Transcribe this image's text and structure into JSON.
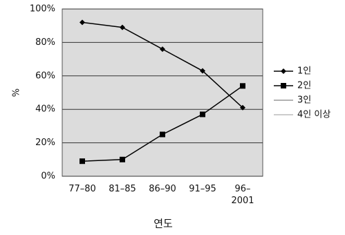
{
  "chart_data": {
    "type": "line",
    "categories": [
      "77–80",
      "81–85",
      "86–90",
      "91–95",
      "96–\n2001"
    ],
    "series": [
      {
        "name": "1인",
        "color": "#000000",
        "marker": "diamond",
        "values": [
          92,
          89,
          76,
          63,
          41
        ]
      },
      {
        "name": "2인",
        "color": "#000000",
        "marker": "square",
        "values": [
          9,
          10,
          25,
          37,
          54
        ]
      },
      {
        "name": "3인",
        "color": "#999999",
        "marker": "none",
        "values": [
          null,
          null,
          null,
          null,
          null
        ]
      },
      {
        "name": "4인 이상",
        "color": "#bbbbbb",
        "marker": "none",
        "values": [
          null,
          null,
          null,
          null,
          null
        ]
      }
    ],
    "ylim": [
      0,
      100
    ],
    "yticks": [
      {
        "value": 0,
        "label": "0%"
      },
      {
        "value": 20,
        "label": "20%"
      },
      {
        "value": 40,
        "label": "40%"
      },
      {
        "value": 60,
        "label": "60%"
      },
      {
        "value": 80,
        "label": "80%"
      },
      {
        "value": 100,
        "label": "100%"
      }
    ],
    "y_label": "%",
    "x_label": "연도",
    "grid": true,
    "legend": "right"
  }
}
